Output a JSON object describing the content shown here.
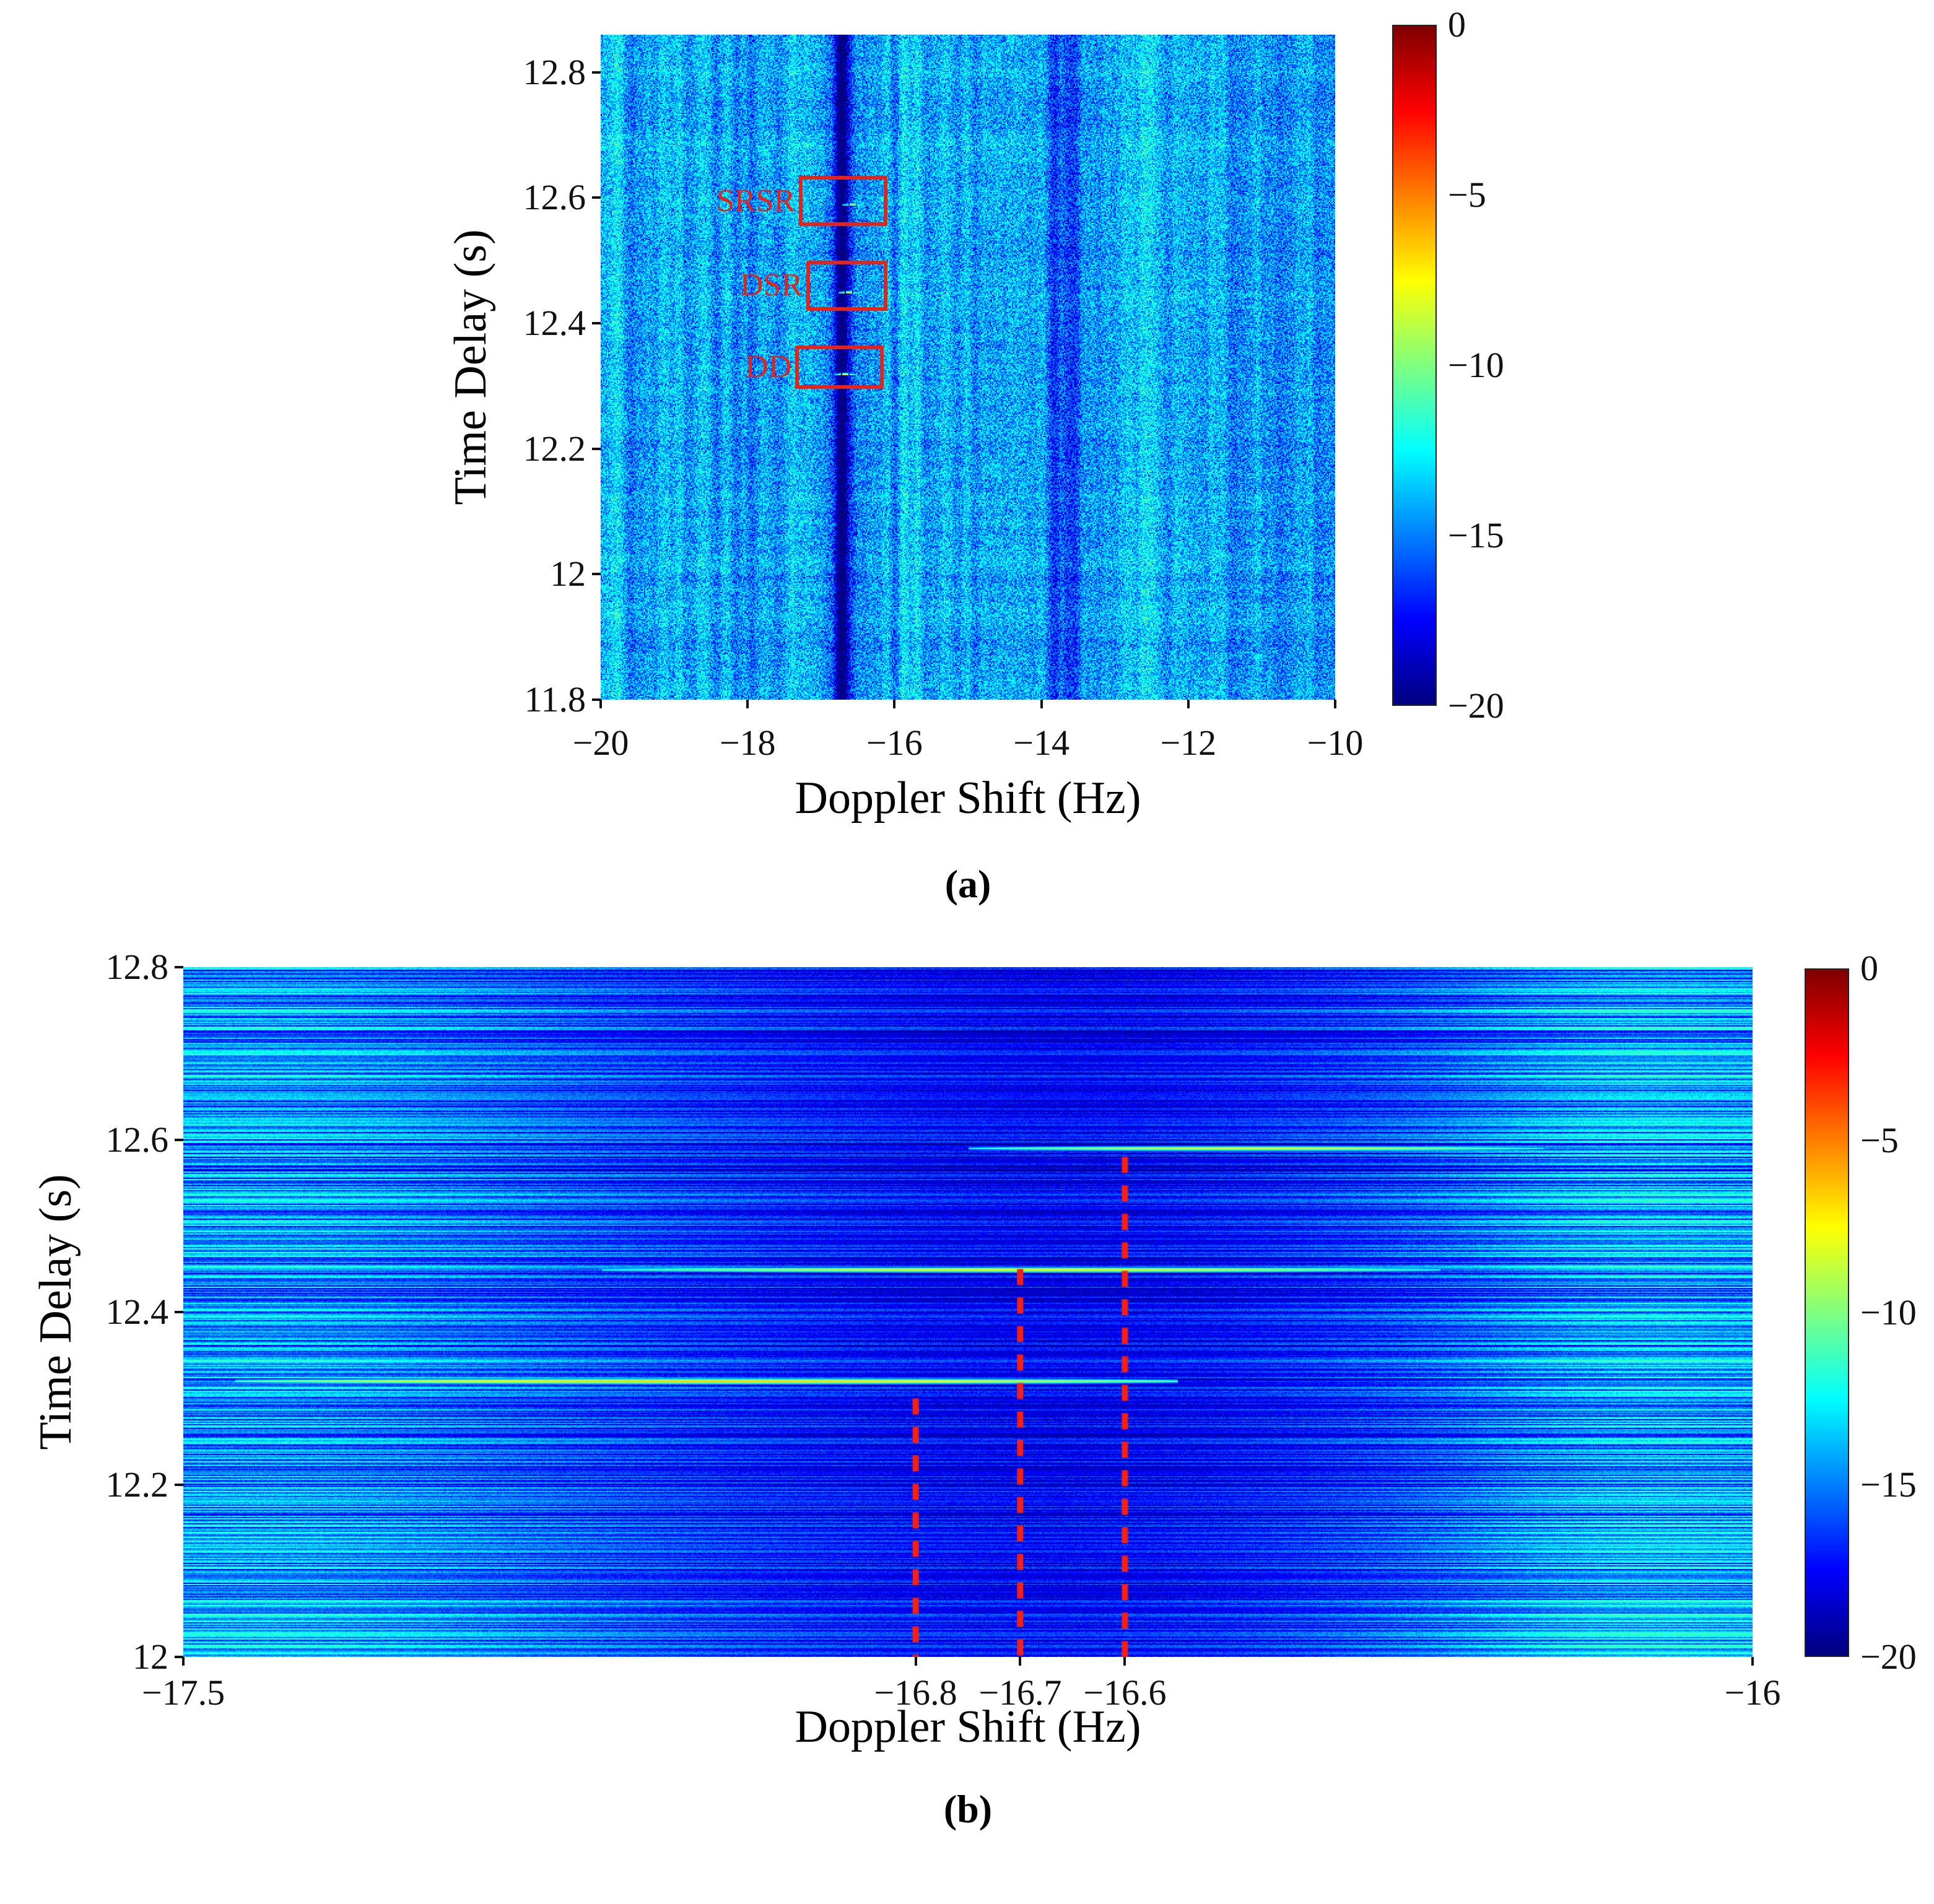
{
  "figure": {
    "kind": "delay-doppler-maps",
    "background": "#ffffff",
    "annotation_color": "#e2241b",
    "dash_color": "#f52015"
  },
  "chart_data": [
    {
      "id": "a",
      "type": "heatmap",
      "panel_label": "(a)",
      "xlabel": "Doppler Shift (Hz)",
      "ylabel": "Time Delay (s)",
      "xlim": [
        -20,
        -10
      ],
      "ylim": [
        11.8,
        12.86
      ],
      "xticks": [
        -20,
        -18,
        -16,
        -14,
        -12,
        -10
      ],
      "yticks": [
        11.8,
        12,
        12.2,
        12.4,
        12.6,
        12.8
      ],
      "colormap": "jet",
      "colorbar": {
        "range": [
          -20,
          0
        ],
        "ticks": [
          0,
          -5,
          -10,
          -15,
          -20
        ]
      },
      "background_level_db": -14.1,
      "noise_spread_db": 4.4,
      "dark_stripe": {
        "doppler": -16.7,
        "width_hz": 0.16,
        "attenuation_db": 5.2
      },
      "echo_peaks": [
        {
          "name": "SRSR",
          "doppler": -16.58,
          "delay": 12.59,
          "level_db": -8
        },
        {
          "name": "DSR",
          "doppler": -16.62,
          "delay": 12.45,
          "level_db": -7.5
        },
        {
          "name": "DD",
          "doppler": -16.68,
          "delay": 12.32,
          "level_db": -7.5
        }
      ],
      "annotations": [
        {
          "label": "SRSR",
          "box": {
            "x0": -17.3,
            "x1": -16.1,
            "y0": 12.555,
            "y1": 12.635
          }
        },
        {
          "label": "DSR",
          "box": {
            "x0": -17.2,
            "x1": -16.1,
            "y0": 12.42,
            "y1": 12.5
          }
        },
        {
          "label": "DD",
          "box": {
            "x0": -17.35,
            "x1": -16.15,
            "y0": 12.295,
            "y1": 12.365
          }
        }
      ]
    },
    {
      "id": "b",
      "type": "heatmap",
      "panel_label": "(b)",
      "xlabel": "Doppler Shift (Hz)",
      "ylabel": "Time Delay (s)",
      "xlim": [
        -17.5,
        -16
      ],
      "ylim": [
        12,
        12.8
      ],
      "xticks": [
        -17.5,
        -16.8,
        -16.7,
        -16.6,
        -16
      ],
      "yticks": [
        12,
        12.2,
        12.4,
        12.6,
        12.8
      ],
      "colormap": "jet",
      "colorbar": {
        "range": [
          -20,
          0
        ],
        "ticks": [
          0,
          -5,
          -10,
          -15,
          -20
        ]
      },
      "background_level_db": -15.8,
      "streak_spread_db": 2.2,
      "echo_lines": [
        {
          "delay": 12.32,
          "x0": -17.45,
          "x1": -16.55,
          "peak_db": -6.5
        },
        {
          "delay": 12.45,
          "x0": -17.1,
          "x1": -16.3,
          "peak_db": -7.5
        },
        {
          "delay": 12.59,
          "x0": -16.75,
          "x1": -16.2,
          "peak_db": -8.0
        }
      ],
      "dashed_lines": [
        {
          "doppler": -16.8,
          "from_delay": 12.3
        },
        {
          "doppler": -16.7,
          "from_delay": 12.45
        },
        {
          "doppler": -16.6,
          "from_delay": 12.58
        }
      ]
    }
  ]
}
